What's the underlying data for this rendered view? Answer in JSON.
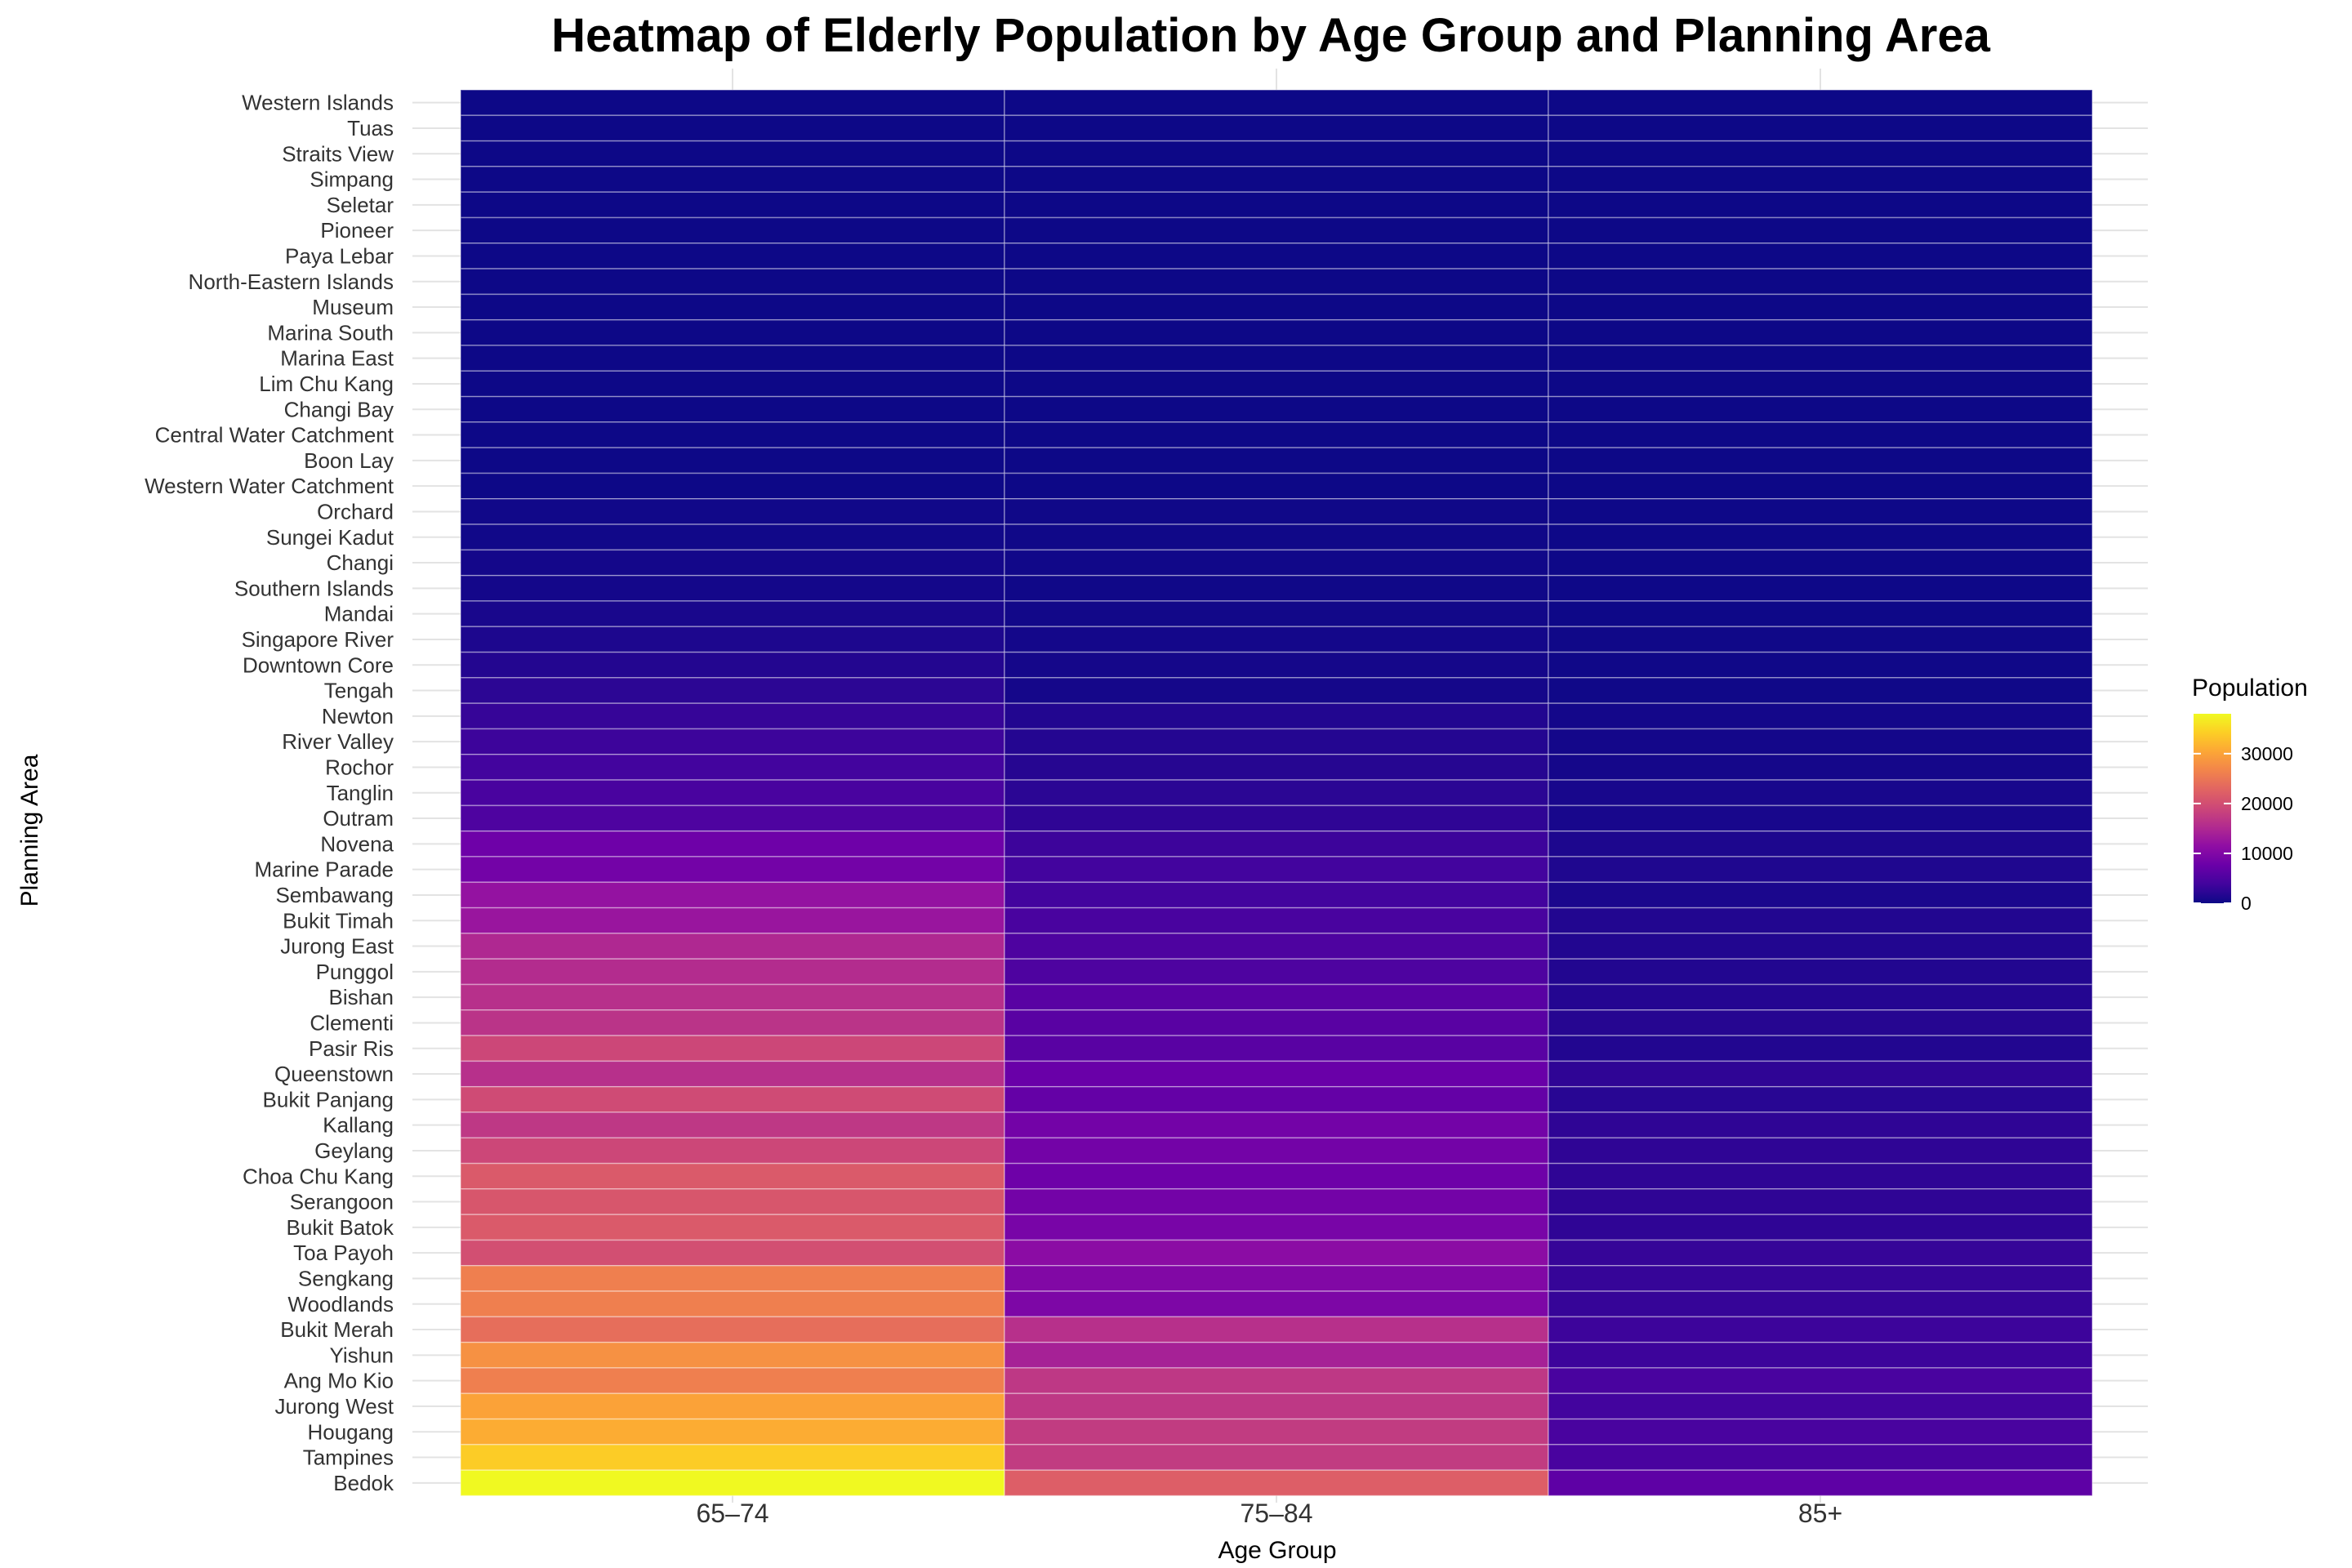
{
  "chart_data": {
    "type": "heatmap",
    "title": "Heatmap of Elderly Population by Age Group and Planning Area",
    "xlabel": "Age Group",
    "ylabel": "Planning Area",
    "x_categories": [
      "65–74",
      "75–84",
      "85+"
    ],
    "y_categories": [
      "Western Islands",
      "Tuas",
      "Straits View",
      "Simpang",
      "Seletar",
      "Pioneer",
      "Paya Lebar",
      "North-Eastern Islands",
      "Museum",
      "Marina South",
      "Marina East",
      "Lim Chu Kang",
      "Changi Bay",
      "Central Water Catchment",
      "Boon Lay",
      "Western Water Catchment",
      "Orchard",
      "Sungei Kadut",
      "Changi",
      "Southern Islands",
      "Mandai",
      "Singapore River",
      "Downtown Core",
      "Tengah",
      "Newton",
      "River Valley",
      "Rochor",
      "Tanglin",
      "Outram",
      "Novena",
      "Marine Parade",
      "Sembawang",
      "Bukit Timah",
      "Jurong East",
      "Punggol",
      "Bishan",
      "Clementi",
      "Pasir Ris",
      "Queenstown",
      "Bukit Panjang",
      "Kallang",
      "Geylang",
      "Choa Chu Kang",
      "Serangoon",
      "Bukit Batok",
      "Toa Payoh",
      "Sengkang",
      "Woodlands",
      "Bukit Merah",
      "Yishun",
      "Ang Mo Kio",
      "Jurong West",
      "Hougang",
      "Tampines",
      "Bedok"
    ],
    "values": [
      [
        0,
        0,
        0
      ],
      [
        0,
        0,
        0
      ],
      [
        0,
        0,
        0
      ],
      [
        0,
        0,
        0
      ],
      [
        0,
        0,
        0
      ],
      [
        0,
        0,
        0
      ],
      [
        0,
        0,
        0
      ],
      [
        0,
        0,
        0
      ],
      [
        0,
        0,
        0
      ],
      [
        0,
        0,
        0
      ],
      [
        0,
        0,
        0
      ],
      [
        0,
        0,
        0
      ],
      [
        0,
        0,
        0
      ],
      [
        0,
        0,
        0
      ],
      [
        0,
        0,
        0
      ],
      [
        0,
        0,
        0
      ],
      [
        300,
        200,
        100
      ],
      [
        300,
        200,
        100
      ],
      [
        500,
        300,
        100
      ],
      [
        500,
        200,
        100
      ],
      [
        900,
        400,
        100
      ],
      [
        1200,
        500,
        200
      ],
      [
        1600,
        600,
        200
      ],
      [
        2300,
        600,
        200
      ],
      [
        3000,
        1500,
        500
      ],
      [
        3500,
        1700,
        500
      ],
      [
        4000,
        1800,
        600
      ],
      [
        4500,
        2200,
        800
      ],
      [
        5000,
        2500,
        800
      ],
      [
        8000,
        3500,
        1200
      ],
      [
        8500,
        4000,
        1300
      ],
      [
        12000,
        4000,
        1000
      ],
      [
        12500,
        4500,
        1500
      ],
      [
        15000,
        5000,
        1500
      ],
      [
        15500,
        5000,
        1500
      ],
      [
        16000,
        6000,
        1700
      ],
      [
        16500,
        6000,
        1800
      ],
      [
        19000,
        6000,
        1500
      ],
      [
        16000,
        7500,
        2500
      ],
      [
        19500,
        7000,
        2000
      ],
      [
        17000,
        8500,
        2500
      ],
      [
        19000,
        8500,
        2500
      ],
      [
        21500,
        8000,
        2500
      ],
      [
        21000,
        8500,
        2500
      ],
      [
        21500,
        9000,
        2500
      ],
      [
        20000,
        11000,
        3000
      ],
      [
        26000,
        10000,
        3000
      ],
      [
        26000,
        9500,
        3000
      ],
      [
        24000,
        16000,
        3500
      ],
      [
        28000,
        14000,
        3500
      ],
      [
        26000,
        17000,
        4500
      ],
      [
        30000,
        17000,
        4000
      ],
      [
        31000,
        17500,
        4500
      ],
      [
        34000,
        17500,
        4500
      ],
      [
        38000,
        22000,
        6500
      ]
    ],
    "legend": {
      "title": "Population",
      "min": 0,
      "max": 38000,
      "ticks": [
        0,
        10000,
        20000,
        30000
      ],
      "placement": "right"
    },
    "colorscale": "plasma",
    "grid": true
  }
}
